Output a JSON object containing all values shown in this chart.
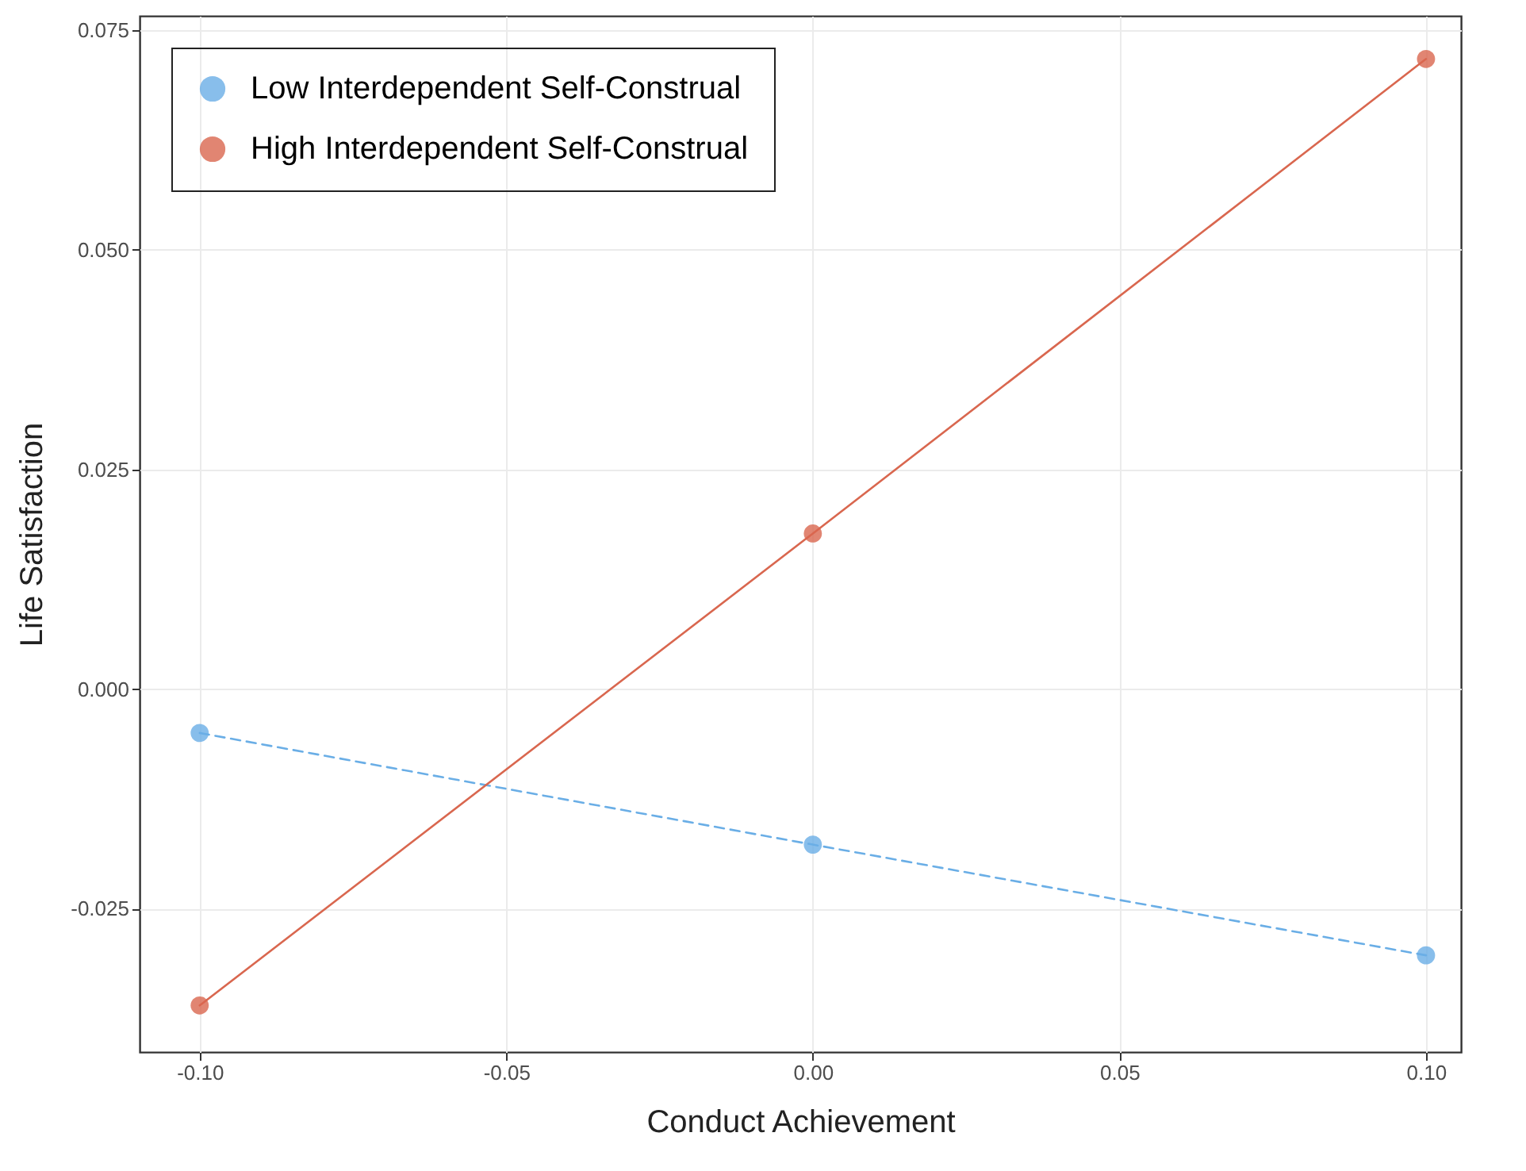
{
  "chart_data": {
    "type": "line",
    "xlabel": "Conduct Achievement",
    "ylabel": "Life Satisfaction",
    "x": [
      -0.1,
      0,
      0.1
    ],
    "series": [
      {
        "name": "Low Interdependent Self-Construal",
        "color": "#6aaee6",
        "values": [
          -0.005,
          -0.0177,
          -0.0303
        ],
        "line_style": "dashed"
      },
      {
        "name": "High Interdependent Self-Construal",
        "color": "#d9674f",
        "values": [
          -0.036,
          0.0177,
          0.0717
        ],
        "line_style": "solid"
      }
    ],
    "xlim": [
      -0.1098,
      0.1057
    ],
    "ylim": [
      -0.0413,
      0.0766
    ],
    "xticks": [
      {
        "value": -0.1,
        "label": "-0.10"
      },
      {
        "value": -0.05,
        "label": "-0.05"
      },
      {
        "value": 0,
        "label": "0.00"
      },
      {
        "value": 0.05,
        "label": "0.05"
      },
      {
        "value": 0.1,
        "label": "0.10"
      }
    ],
    "yticks": [
      {
        "value": -0.025,
        "label": "-0.025"
      },
      {
        "value": 0,
        "label": "0.000"
      },
      {
        "value": 0.025,
        "label": "0.025"
      },
      {
        "value": 0.05,
        "label": "0.050"
      },
      {
        "value": 0.075,
        "label": "0.075"
      }
    ],
    "grid": true,
    "legend": "top left",
    "marker": "circle"
  }
}
